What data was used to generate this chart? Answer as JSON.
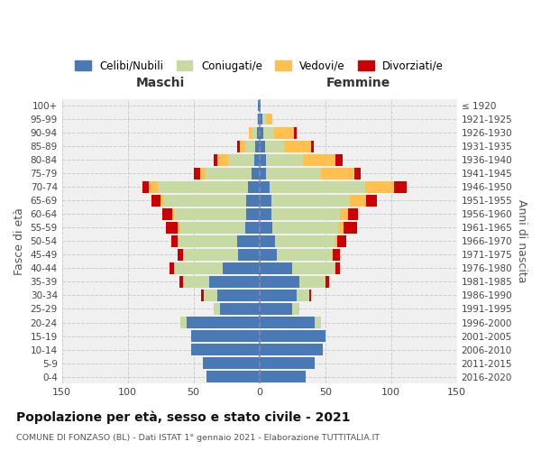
{
  "age_groups": [
    "0-4",
    "5-9",
    "10-14",
    "15-19",
    "20-24",
    "25-29",
    "30-34",
    "35-39",
    "40-44",
    "45-49",
    "50-54",
    "55-59",
    "60-64",
    "65-69",
    "70-74",
    "75-79",
    "80-84",
    "85-89",
    "90-94",
    "95-99",
    "100+"
  ],
  "birth_years": [
    "2016-2020",
    "2011-2015",
    "2006-2010",
    "2001-2005",
    "1996-2000",
    "1991-1995",
    "1986-1990",
    "1981-1985",
    "1976-1980",
    "1971-1975",
    "1966-1970",
    "1961-1965",
    "1956-1960",
    "1951-1955",
    "1946-1950",
    "1941-1945",
    "1936-1940",
    "1931-1935",
    "1926-1930",
    "1921-1925",
    "≤ 1920"
  ],
  "male": {
    "celibi": [
      40,
      43,
      52,
      52,
      55,
      30,
      32,
      38,
      28,
      16,
      17,
      11,
      10,
      10,
      9,
      6,
      4,
      3,
      2,
      1,
      1
    ],
    "coniugati": [
      0,
      0,
      0,
      0,
      5,
      5,
      10,
      20,
      37,
      42,
      45,
      50,
      55,
      63,
      68,
      35,
      20,
      8,
      4,
      1,
      0
    ],
    "vedovi": [
      0,
      0,
      0,
      0,
      0,
      0,
      0,
      0,
      0,
      0,
      0,
      1,
      1,
      2,
      7,
      4,
      8,
      4,
      2,
      0,
      0
    ],
    "divorziati": [
      0,
      0,
      0,
      0,
      0,
      0,
      2,
      3,
      3,
      4,
      5,
      9,
      8,
      7,
      5,
      5,
      3,
      2,
      0,
      0,
      0
    ]
  },
  "female": {
    "nubili": [
      35,
      42,
      48,
      50,
      42,
      25,
      28,
      30,
      25,
      13,
      12,
      10,
      9,
      9,
      8,
      5,
      5,
      4,
      3,
      2,
      1
    ],
    "coniugate": [
      0,
      0,
      0,
      0,
      5,
      5,
      10,
      20,
      32,
      42,
      45,
      50,
      52,
      60,
      72,
      42,
      28,
      15,
      8,
      3,
      0
    ],
    "vedove": [
      0,
      0,
      0,
      0,
      0,
      0,
      0,
      0,
      1,
      1,
      2,
      4,
      6,
      12,
      22,
      25,
      25,
      20,
      15,
      5,
      0
    ],
    "divorziate": [
      0,
      0,
      0,
      0,
      0,
      0,
      1,
      3,
      3,
      5,
      7,
      10,
      8,
      8,
      10,
      5,
      5,
      2,
      2,
      0,
      0
    ]
  },
  "colors": {
    "celibi": "#4a7ab5",
    "coniugati": "#c8daa4",
    "vedovi": "#ffc04d",
    "divorziati": "#cc0000"
  },
  "title": "Popolazione per età, sesso e stato civile - 2021",
  "subtitle": "COMUNE DI FONZASO (BL) - Dati ISTAT 1° gennaio 2021 - Elaborazione TUTTITALIA.IT",
  "xlabel_left": "Maschi",
  "xlabel_right": "Femmine",
  "ylabel_left": "Fasce di età",
  "ylabel_right": "Anni di nascita",
  "xlim": 150,
  "legend_labels": [
    "Celibi/Nubili",
    "Coniugati/e",
    "Vedovi/e",
    "Divorziati/e"
  ],
  "background_color": "#ffffff",
  "plot_bg_color": "#f0f0f0",
  "grid_color": "#cccccc"
}
